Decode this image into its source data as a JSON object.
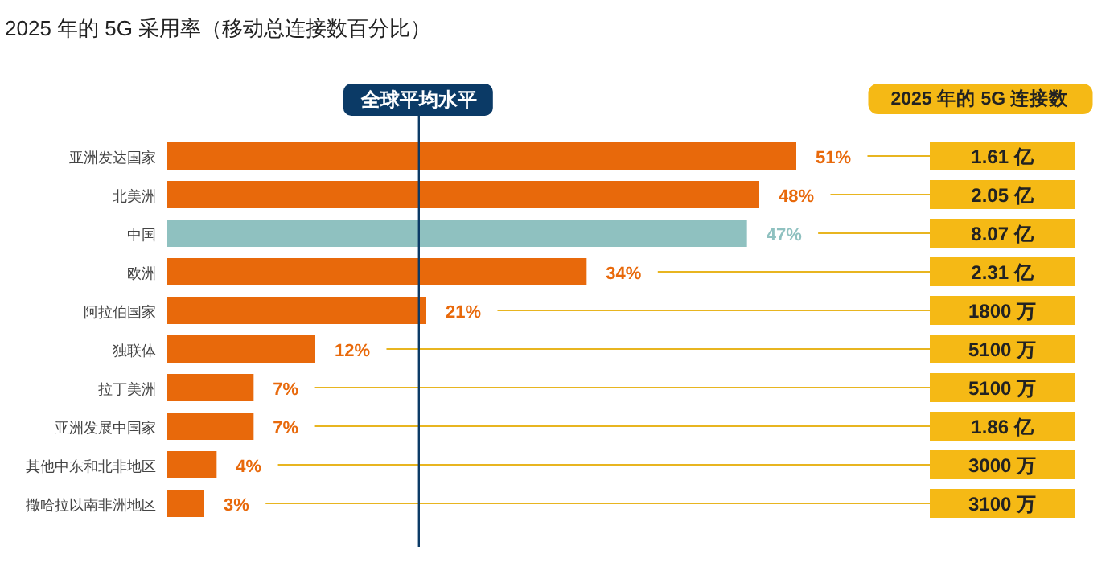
{
  "chart_data": {
    "type": "bar",
    "orientation": "horizontal",
    "title": "2025 年的 5G 采用率（移动总连接数百分比）",
    "categories": [
      "亚洲发达国家",
      "北美洲",
      "中国",
      "欧洲",
      "阿拉伯国家",
      "独联体",
      "拉丁美洲",
      "亚洲发展中国家",
      "其他中东和北非地区",
      "撒哈拉以南非洲地区"
    ],
    "values": [
      51,
      48,
      47,
      34,
      21,
      12,
      7,
      7,
      4,
      3
    ],
    "colors": [
      "#e8690b",
      "#e8690b",
      "#8fc1c0",
      "#e8690b",
      "#e8690b",
      "#e8690b",
      "#e8690b",
      "#e8690b",
      "#e8690b",
      "#e8690b"
    ],
    "value_labels": [
      "51%",
      "48%",
      "47%",
      "34%",
      "21%",
      "12%",
      "7%",
      "7%",
      "4%",
      "3%"
    ],
    "ref_lines": [
      {
        "axis": "x",
        "value": 20.4,
        "label": "全球平均水平",
        "color": "#0b3a66"
      }
    ],
    "annotations": [
      "2025 年的 5G 连接数",
      "1.61 亿",
      "2.05 亿",
      "8.07 亿",
      "2.31 亿",
      "1800 万",
      "5100 万",
      "5100 万",
      "1.86 亿",
      "3000 万",
      "3100 万"
    ]
  }
}
